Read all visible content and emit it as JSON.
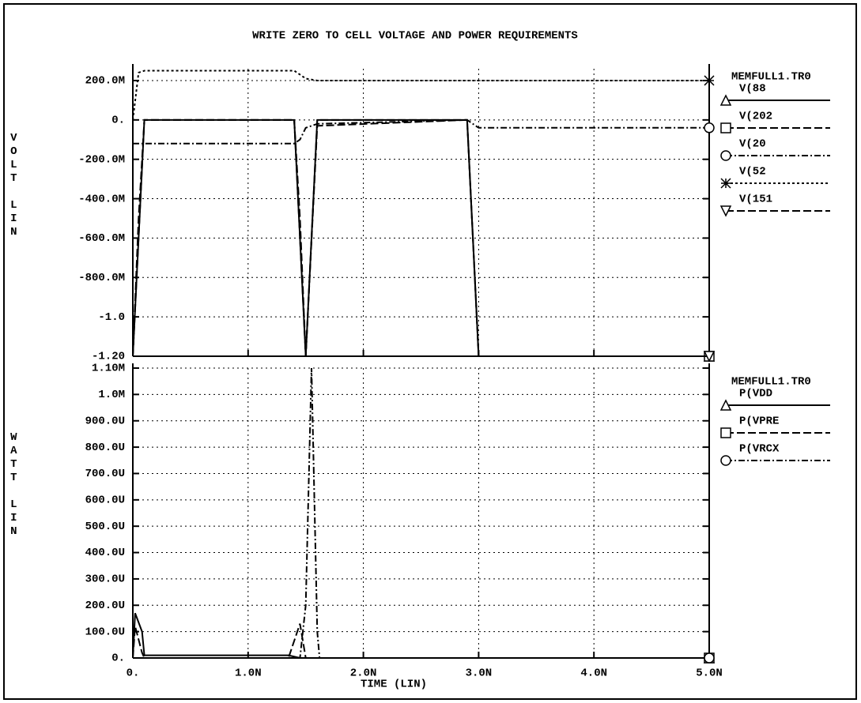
{
  "chart_data": [
    {
      "type": "line",
      "title": "WRITE ZERO TO CELL VOLTAGE AND POWER REQUIREMENTS",
      "ylabel": "VOLT LIN",
      "legend_title": "MEMFULL1.TR0",
      "ylim": [
        -1.2,
        0.26
      ],
      "yticks": [
        {
          "value": 0.2,
          "label": "200.0M"
        },
        {
          "value": 0,
          "label": "0."
        },
        {
          "value": -0.2,
          "label": "-200.0M"
        },
        {
          "value": -0.4,
          "label": "-400.0M"
        },
        {
          "value": -0.6,
          "label": "-600.0M"
        },
        {
          "value": -0.8,
          "label": "-800.0M"
        },
        {
          "value": -1,
          "label": "-1.0"
        },
        {
          "value": -1.2,
          "label": "-1.20"
        }
      ],
      "grid": true,
      "x": [
        0,
        5e-11,
        1e-10,
        1.4e-09,
        1.45e-09,
        1.5e-09,
        1.6e-09,
        2.9e-09,
        3e-09,
        5e-09
      ],
      "series": [
        {
          "name": "V(88",
          "color": "#000000",
          "dash": "solid",
          "marker": "triangle",
          "values": [
            -1.2,
            -0.6,
            0,
            0,
            -0.6,
            -1.2,
            0,
            0,
            -1.2,
            -1.2
          ]
        },
        {
          "name": "V(202",
          "color": "#000000",
          "dash": "long-dash",
          "marker": "square",
          "values": [
            -1.2,
            -0.5,
            0,
            0,
            -0.5,
            -1.2,
            -0.03,
            0,
            -1.2,
            -1.2
          ]
        },
        {
          "name": "V(20",
          "color": "#000000",
          "dash": "dash-dot",
          "marker": "circle",
          "values": [
            -0.12,
            -0.12,
            -0.12,
            -0.12,
            -0.1,
            -0.04,
            -0.02,
            0,
            -0.04,
            -0.04
          ]
        },
        {
          "name": "V(52",
          "color": "#000000",
          "dash": "dotted",
          "marker": "star",
          "values": [
            0,
            0.24,
            0.25,
            0.25,
            0.23,
            0.21,
            0.2,
            0.2,
            0.2,
            0.2
          ]
        },
        {
          "name": "V(151",
          "color": "#000000",
          "dash": "long-dash",
          "marker": "triangle-down",
          "values": [
            -1.2,
            -0.6,
            0,
            0,
            -0.6,
            -1.2,
            0,
            0,
            -1.2,
            -1.2
          ]
        }
      ]
    },
    {
      "type": "line",
      "ylabel": "WATT LIN",
      "xlabel": "TIME (LIN)",
      "legend_title": "MEMFULL1.TR0",
      "xlim": [
        0,
        5e-09
      ],
      "xticks": [
        {
          "value": 0,
          "label": "0."
        },
        {
          "value": 1e-09,
          "label": "1.0N"
        },
        {
          "value": 2e-09,
          "label": "2.0N"
        },
        {
          "value": 3e-09,
          "label": "3.0N"
        },
        {
          "value": 4e-09,
          "label": "4.0N"
        },
        {
          "value": 5e-09,
          "label": "5.0N"
        }
      ],
      "ylim": [
        0,
        0.0011
      ],
      "yticks": [
        {
          "value": 0,
          "label": "0."
        },
        {
          "value": 0.0001,
          "label": "100.0U"
        },
        {
          "value": 0.0002,
          "label": "200.0U"
        },
        {
          "value": 0.0003,
          "label": "300.0U"
        },
        {
          "value": 0.0004,
          "label": "400.0U"
        },
        {
          "value": 0.0005,
          "label": "500.0U"
        },
        {
          "value": 0.0006,
          "label": "600.0U"
        },
        {
          "value": 0.0007,
          "label": "700.0U"
        },
        {
          "value": 0.0008,
          "label": "800.0U"
        },
        {
          "value": 0.0009,
          "label": "900.0U"
        },
        {
          "value": 0.001,
          "label": "1.0M"
        },
        {
          "value": 0.0011,
          "label": "1.10M"
        }
      ],
      "grid": true,
      "x": [
        0,
        2e-11,
        8e-11,
        1e-10,
        1.35e-09,
        1.45e-09,
        1.5e-09,
        1.55e-09,
        1.6e-09,
        1.62e-09,
        5e-09
      ],
      "series": [
        {
          "name": "P(VDD",
          "color": "#000000",
          "dash": "solid",
          "marker": "triangle",
          "values": [
            0,
            0.00017,
            0.0001,
            1e-05,
            1e-05,
            0,
            0,
            0,
            0,
            0,
            0
          ]
        },
        {
          "name": "P(VPRE",
          "color": "#000000",
          "dash": "long-dash",
          "marker": "square",
          "values": [
            0,
            0.00012,
            2e-05,
            0,
            0,
            0.00013,
            0,
            0,
            0,
            0,
            0
          ]
        },
        {
          "name": "P(VRCX",
          "color": "#000000",
          "dash": "dash-dot",
          "marker": "circle",
          "values": [
            0,
            0,
            0,
            0,
            0,
            0,
            0.0002,
            0.0011,
            0.0001,
            0,
            0
          ]
        }
      ]
    }
  ]
}
